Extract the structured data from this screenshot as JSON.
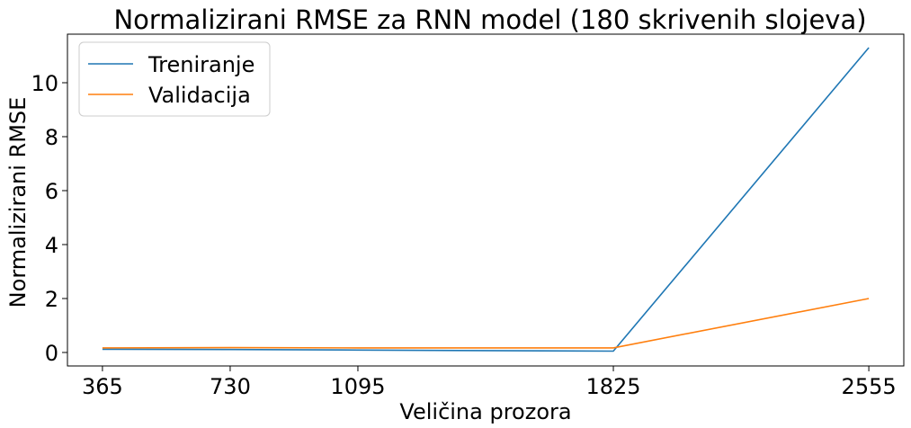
{
  "chart_data": {
    "type": "line",
    "title": "Normalizirani RMSE za RNN model (180 skrivenih slojeva)",
    "xlabel": "Veličina prozora",
    "ylabel": "Normalizirani RMSE",
    "x": [
      365,
      730,
      1095,
      1825,
      2555
    ],
    "x_ticks": [
      365,
      730,
      1095,
      1825,
      2555
    ],
    "y_ticks": [
      0,
      2,
      4,
      6,
      8,
      10
    ],
    "xlim": [
      265,
      2655
    ],
    "ylim": [
      -0.5,
      11.8
    ],
    "grid": false,
    "legend_position": "top-left",
    "series": [
      {
        "name": "Treniranje",
        "color": "#1f77b4",
        "values": [
          0.12,
          0.11,
          0.09,
          0.05,
          11.3
        ]
      },
      {
        "name": "Validacija",
        "color": "#ff7f0e",
        "values": [
          0.17,
          0.18,
          0.17,
          0.17,
          2.0
        ]
      }
    ]
  }
}
